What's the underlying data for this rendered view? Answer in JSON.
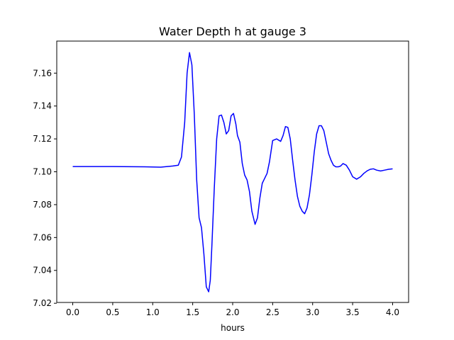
{
  "chart_data": {
    "type": "line",
    "title": "Water Depth h at gauge 3",
    "xlabel": "hours",
    "ylabel": "",
    "xlim": [
      -0.2,
      4.2
    ],
    "ylim": [
      7.0205,
      7.1795
    ],
    "x_ticks": [
      0.0,
      0.5,
      1.0,
      1.5,
      2.0,
      2.5,
      3.0,
      3.5,
      4.0
    ],
    "x_tick_labels": [
      "0.0",
      "0.5",
      "1.0",
      "1.5",
      "2.0",
      "2.5",
      "3.0",
      "3.5",
      "4.0"
    ],
    "y_ticks": [
      7.02,
      7.04,
      7.06,
      7.08,
      7.1,
      7.12,
      7.14,
      7.16
    ],
    "y_tick_labels": [
      "7.02",
      "7.04",
      "7.06",
      "7.08",
      "7.10",
      "7.12",
      "7.14",
      "7.16"
    ],
    "grid": false,
    "legend": "none",
    "series": [
      {
        "color": "#0000ff",
        "x": [
          0.0,
          0.5,
          0.9,
          1.1,
          1.25,
          1.32,
          1.36,
          1.4,
          1.43,
          1.46,
          1.49,
          1.52,
          1.55,
          1.58,
          1.61,
          1.64,
          1.67,
          1.7,
          1.72,
          1.74,
          1.77,
          1.8,
          1.83,
          1.86,
          1.89,
          1.92,
          1.95,
          1.98,
          2.01,
          2.04,
          2.06,
          2.09,
          2.12,
          2.15,
          2.18,
          2.21,
          2.24,
          2.28,
          2.31,
          2.34,
          2.37,
          2.4,
          2.43,
          2.46,
          2.5,
          2.55,
          2.6,
          2.63,
          2.66,
          2.69,
          2.72,
          2.75,
          2.78,
          2.81,
          2.84,
          2.87,
          2.9,
          2.93,
          2.96,
          2.99,
          3.02,
          3.05,
          3.08,
          3.11,
          3.14,
          3.17,
          3.2,
          3.23,
          3.26,
          3.29,
          3.32,
          3.35,
          3.38,
          3.42,
          3.46,
          3.5,
          3.55,
          3.6,
          3.64,
          3.68,
          3.72,
          3.76,
          3.8,
          3.85,
          3.9,
          3.95,
          4.0
        ],
        "y": [
          7.1032,
          7.1032,
          7.103,
          7.1028,
          7.1035,
          7.104,
          7.109,
          7.13,
          7.16,
          7.1725,
          7.165,
          7.135,
          7.095,
          7.072,
          7.066,
          7.05,
          7.03,
          7.027,
          7.034,
          7.055,
          7.09,
          7.12,
          7.134,
          7.1345,
          7.13,
          7.123,
          7.125,
          7.134,
          7.1355,
          7.129,
          7.122,
          7.118,
          7.105,
          7.098,
          7.095,
          7.088,
          7.076,
          7.068,
          7.072,
          7.084,
          7.093,
          7.096,
          7.099,
          7.106,
          7.119,
          7.12,
          7.1185,
          7.122,
          7.1275,
          7.127,
          7.12,
          7.107,
          7.095,
          7.085,
          7.079,
          7.076,
          7.0745,
          7.078,
          7.086,
          7.098,
          7.112,
          7.123,
          7.128,
          7.128,
          7.125,
          7.118,
          7.111,
          7.107,
          7.104,
          7.103,
          7.103,
          7.1035,
          7.105,
          7.104,
          7.101,
          7.097,
          7.0955,
          7.097,
          7.099,
          7.1005,
          7.1015,
          7.1018,
          7.101,
          7.1005,
          7.101,
          7.1015,
          7.1018
        ]
      }
    ]
  }
}
